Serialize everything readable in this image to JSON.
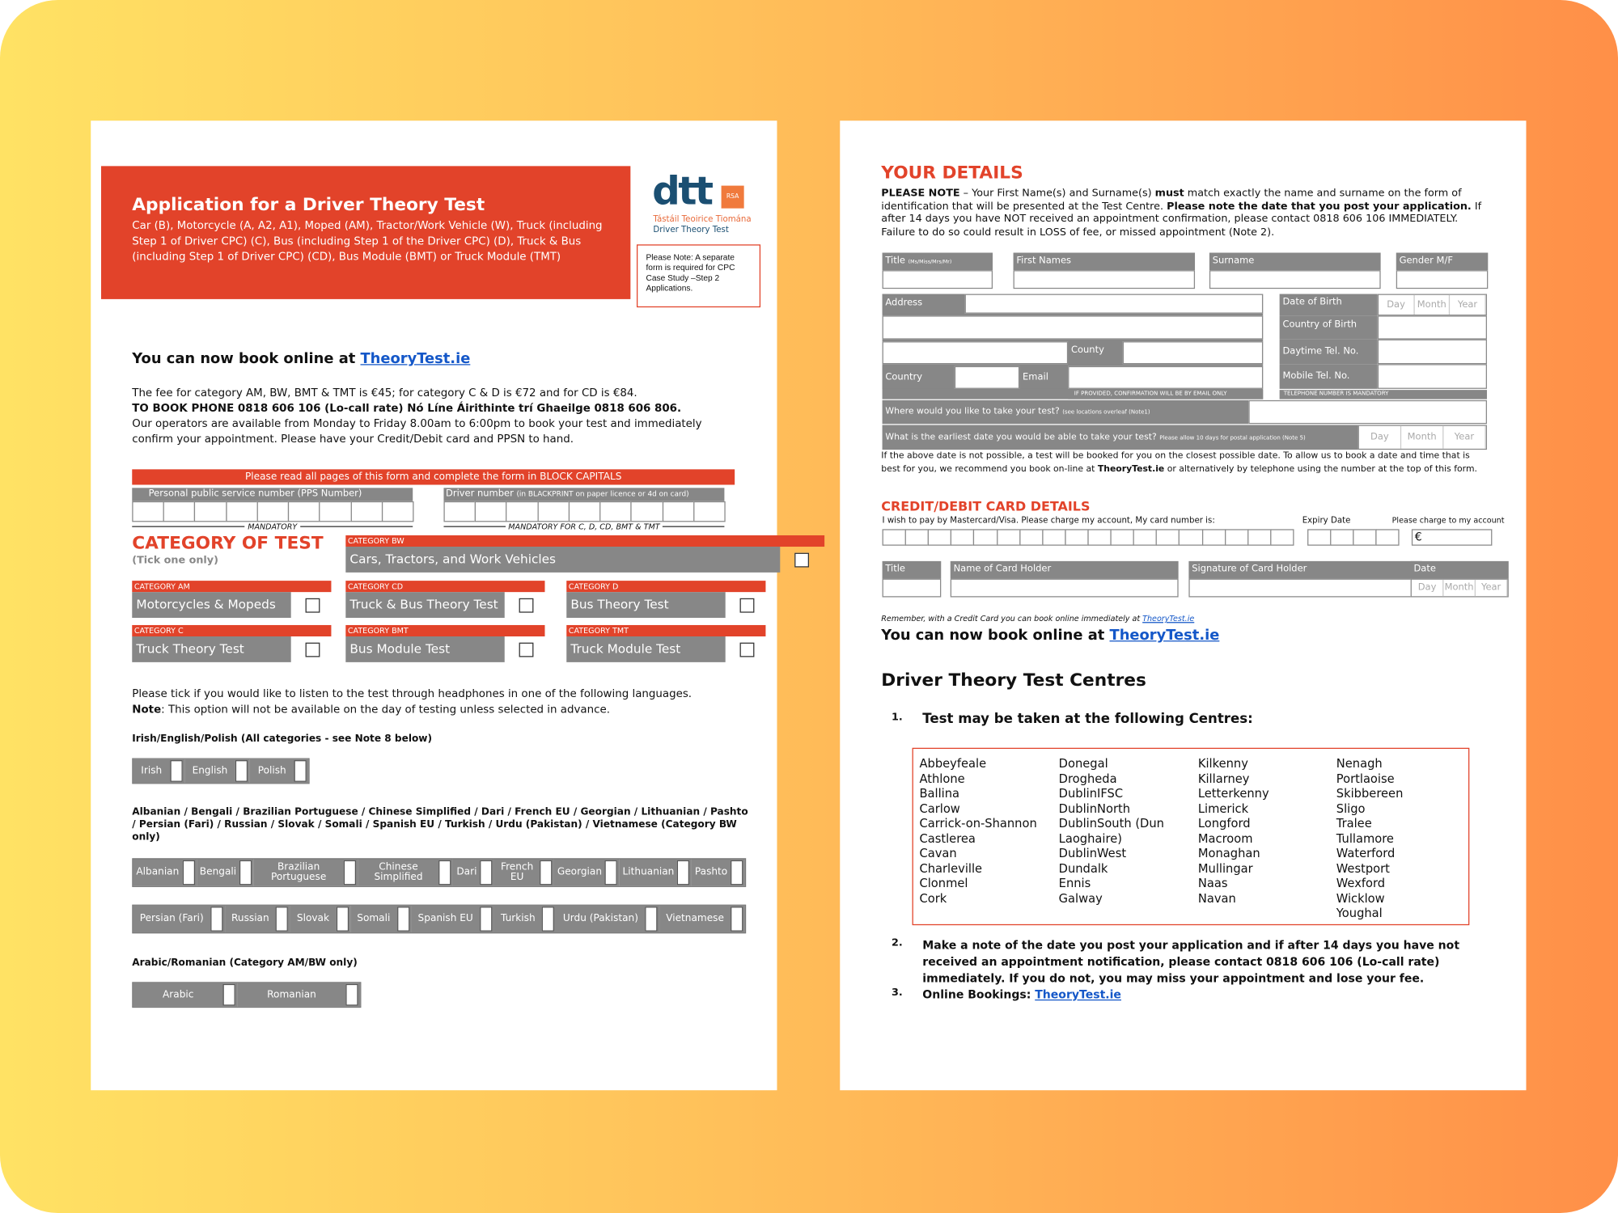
{
  "left_page": {
    "header": {
      "title": "Application for a Driver Theory Test",
      "subtitle": "Car (B), Motorcycle (A, A2, A1), Moped (AM), Tractor/Work Vehicle (W), Truck (including Step 1 of Driver CPC) (C), Bus (including Step 1 of the Driver CPC) (D), Truck & Bus (including Step 1 of Driver CPC) (CD), Bus Module (BMT) or Truck Module (TMT)",
      "logo": "dtt",
      "logo_badge": "RSA",
      "logo_irish": "Tástáil Teoirice Tiomána",
      "logo_english": "Driver Theory Test",
      "note": "Please Note: A separate form is required for CPC Case Study –Step 2 Applications."
    },
    "book_online": {
      "text": "You can now book online at ",
      "link": "TheoryTest.ie"
    },
    "fee_text": "The fee for category AM, BW, BMT & TMT is €45; for category C & D is €72 and for CD is €84.",
    "phone_text": "TO BOOK PHONE 0818 606 106 (Lo-call rate) Nó Líne Áirithinte trí Ghaeilge 0818 606 806.",
    "operators_text": "Our operators are available from Monday to Friday 8.00am to 6:00pm to book your test and immediately confirm your appointment. Please have your Credit/Debit card and PPSN to hand.",
    "block_capitals": "Please read all pages of this form and complete the form in BLOCK CAPITALS",
    "pps_label": "Personal public service number (PPS Number)",
    "pps_mandatory": "MANDATORY",
    "driver_label": "Driver number ",
    "driver_label_note": "(in BLACKPRINT on paper licence or 4d on card)",
    "driver_mandatory": "MANDATORY FOR C, D, CD, BMT & TMT",
    "category_title": "CATEGORY OF TEST",
    "category_hint": "(Tick one only)",
    "categories": [
      {
        "code": "CATEGORY BW",
        "name": "Cars, Tractors, and Work Vehicles"
      },
      {
        "code": "CATEGORY AM",
        "name": "Motorcycles & Mopeds"
      },
      {
        "code": "CATEGORY CD",
        "name": "Truck & Bus Theory Test"
      },
      {
        "code": "CATEGORY D",
        "name": "Bus Theory Test"
      },
      {
        "code": "CATEGORY C",
        "name": "Truck Theory Test"
      },
      {
        "code": "CATEGORY BMT",
        "name": "Bus Module Test"
      },
      {
        "code": "CATEGORY TMT",
        "name": "Truck Module Test"
      }
    ],
    "headphones_text": "Please tick if you would like to listen to the test through headphones in one of the following languages.",
    "headphones_note": [
      {
        "text": "Note",
        "bold": true
      },
      {
        "text": ": This option will not be available on the day of testing unless selected in advance."
      }
    ],
    "language_groups": [
      {
        "heading": "Irish/English/Polish (All categories - see Note 8 below)",
        "rows": [
          [
            "Irish",
            "English",
            "Polish"
          ]
        ]
      },
      {
        "heading": "Albanian / Bengali / Brazilian Portuguese / Chinese Simplified / Dari / French EU / Georgian / Lithuanian / Pashto / Persian (Fari) / Russian / Slovak / Somali / Spanish EU / Turkish / Urdu (Pakistan) / Vietnamese (Category BW only)",
        "rows": [
          [
            "Albanian",
            "Bengali",
            "Brazilian Portuguese",
            "Chinese Simplified",
            "Dari",
            "French EU",
            "Georgian",
            "Lithuanian",
            "Pashto"
          ],
          [
            "Persian (Fari)",
            "Russian",
            "Slovak",
            "Somali",
            "Spanish EU",
            "Turkish",
            "Urdu (Pakistan)",
            "Vietnamese"
          ]
        ]
      },
      {
        "heading": "Arabic/Romanian (Category AM/BW only)",
        "rows": [
          [
            "Arabic",
            "Romanian"
          ]
        ]
      }
    ]
  },
  "right_page": {
    "your_details_title": "YOUR DETAILS",
    "please_note": [
      {
        "text": "PLEASE NOTE",
        "bold": true
      },
      {
        "text": " – Your First Name(s) and Surname(s) "
      },
      {
        "text": "must",
        "bold": true
      },
      {
        "text": " match exactly the name and surname on the form of identification that will be presented at the Test Centre. "
      },
      {
        "text": "Please note the date that you post your application.",
        "bold": true
      },
      {
        "text": " If after 14 days you have NOT received an appointment confirmation, please contact 0818 606 106 IMMEDIATELY. Failure to do so could result in LOSS of fee, or missed appointment (Note 2)."
      }
    ],
    "fields": {
      "title": "Title ",
      "title_hint": "(Ms/Miss/Mrs/Mr)",
      "first_names": "First Names",
      "surname": "Surname",
      "gender": "Gender M/F",
      "address": "Address",
      "county": "County",
      "country": "Country",
      "email": "Email",
      "email_note": "IF PROVIDED, CONFIRMATION WILL BE BY EMAIL ONLY",
      "dob": {
        "label": "Date of Birth",
        "parts": [
          "Day",
          "Month",
          "Year"
        ]
      },
      "country_of_birth": "Country of Birth",
      "daytime_tel": "Daytime Tel. No.",
      "mobile_tel": "Mobile Tel. No.",
      "tel_note": "TELEPHONE NUMBER IS MANDATORY",
      "where": "Where would you like to take your test? ",
      "where_hint": "(see locations overleaf (Note1)",
      "earliest": {
        "label": "What is the earliest date you would be able to take your test? ",
        "hint": "Please allow 10 days for postal application (Note 5)",
        "parts": [
          "Day",
          "Month",
          "Year"
        ]
      }
    },
    "above_date_text": [
      {
        "text": "If the above date is not possible, a test will be booked for you on the closest possible date. To allow us to book a date and time that is best for you, we recommend you book on-line at "
      },
      {
        "text": "TheoryTest.ie",
        "bold": true
      },
      {
        "text": " or alternatively by telephone using the number at the top of this form."
      }
    ],
    "card": {
      "title": "CREDIT/DEBIT CARD DETAILS",
      "instruction": "I wish to pay by Mastercard/Visa. Please charge my account, My card number is:",
      "expiry": "Expiry Date",
      "charge": "Please charge to my account",
      "currency": "€",
      "holder_title": "Title",
      "holder_name": "Name of Card Holder",
      "signature": "Signature of Card Holder",
      "date": {
        "label": "Date",
        "parts": [
          "Day",
          "Month",
          "Year"
        ]
      }
    },
    "remember": {
      "text": "Remember, with a Credit Card you can book online immediately at ",
      "link": "TheoryTest.ie"
    },
    "book_online": {
      "text": "You can now book online at ",
      "link": "TheoryTest.ie"
    },
    "centres_title": "Driver Theory Test Centres",
    "items": [
      {
        "number": "1.",
        "text": "Test may be taken at the following Centres:"
      },
      {
        "number": "2.",
        "text": "Make a note of the date you post your application and if after 14 days you have not received an appointment notification, please contact 0818 606 106 (Lo-call rate) immediately. If you do not, you may miss your appointment and lose your fee."
      },
      {
        "number": "3.",
        "text": "Online Bookings: ",
        "link": "TheoryTest.ie"
      }
    ],
    "centres": [
      [
        "Abbeyfeale",
        "Athlone",
        "Ballina",
        "Carlow",
        "Carrick-on-Shannon",
        "Castlerea",
        "Cavan",
        "Charleville",
        "Clonmel",
        "Cork"
      ],
      [
        "Donegal",
        "Drogheda",
        "DublinIFSC",
        "DublinNorth",
        "DublinSouth (Dun Laoghaire)",
        "DublinWest",
        "Dundalk",
        "Ennis",
        "Galway"
      ],
      [
        "Kilkenny",
        "Killarney",
        "Letterkenny",
        "Limerick",
        "Longford",
        "Macroom",
        "Monaghan",
        "Mullingar",
        "Naas",
        "Navan"
      ],
      [
        "Nenagh",
        "Portlaoise",
        "Skibbereen",
        "Sligo",
        "Tralee",
        "Tullamore",
        "Waterford",
        "Westport",
        "Wexford",
        "Wicklow",
        "Youghal"
      ]
    ]
  }
}
